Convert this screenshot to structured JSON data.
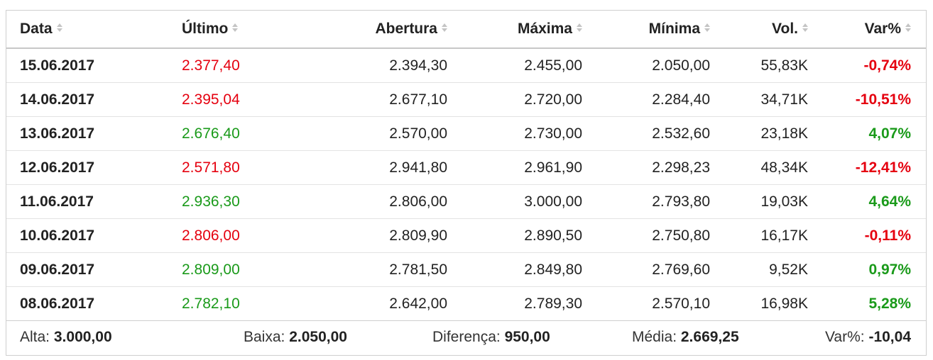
{
  "header": {
    "columns": [
      "Data",
      "Último",
      "Abertura",
      "Máxima",
      "Mínima",
      "Vol.",
      "Var%"
    ]
  },
  "rows": [
    {
      "date": "15.06.2017",
      "last": "2.377,40",
      "open": "2.394,30",
      "high": "2.455,00",
      "low": "2.050,00",
      "vol": "55,83K",
      "change": "-0,74%",
      "dir": "neg"
    },
    {
      "date": "14.06.2017",
      "last": "2.395,04",
      "open": "2.677,10",
      "high": "2.720,00",
      "low": "2.284,40",
      "vol": "34,71K",
      "change": "-10,51%",
      "dir": "neg"
    },
    {
      "date": "13.06.2017",
      "last": "2.676,40",
      "open": "2.570,00",
      "high": "2.730,00",
      "low": "2.532,60",
      "vol": "23,18K",
      "change": "4,07%",
      "dir": "pos"
    },
    {
      "date": "12.06.2017",
      "last": "2.571,80",
      "open": "2.941,80",
      "high": "2.961,90",
      "low": "2.298,23",
      "vol": "48,34K",
      "change": "-12,41%",
      "dir": "neg"
    },
    {
      "date": "11.06.2017",
      "last": "2.936,30",
      "open": "2.806,00",
      "high": "3.000,00",
      "low": "2.793,80",
      "vol": "19,03K",
      "change": "4,64%",
      "dir": "pos"
    },
    {
      "date": "10.06.2017",
      "last": "2.806,00",
      "open": "2.809,90",
      "high": "2.890,50",
      "low": "2.750,80",
      "vol": "16,17K",
      "change": "-0,11%",
      "dir": "neg"
    },
    {
      "date": "09.06.2017",
      "last": "2.809,00",
      "open": "2.781,50",
      "high": "2.849,80",
      "low": "2.769,60",
      "vol": "9,52K",
      "change": "0,97%",
      "dir": "pos"
    },
    {
      "date": "08.06.2017",
      "last": "2.782,10",
      "open": "2.642,00",
      "high": "2.789,30",
      "low": "2.570,10",
      "vol": "16,98K",
      "change": "5,28%",
      "dir": "pos"
    }
  ],
  "footer": {
    "high_label": "Alta:",
    "high_value": "3.000,00",
    "low_label": "Baixa:",
    "low_value": "2.050,00",
    "diff_label": "Diferença:",
    "diff_value": "950,00",
    "avg_label": "Média:",
    "avg_value": "2.669,25",
    "chg_label": "Var%:",
    "chg_value": "-10,04"
  },
  "colors": {
    "negative": "#e5000f",
    "positive": "#1a9a1a",
    "sort_icon": "#c4c4c4"
  },
  "icons": {
    "sort": "sort-arrows-icon"
  }
}
